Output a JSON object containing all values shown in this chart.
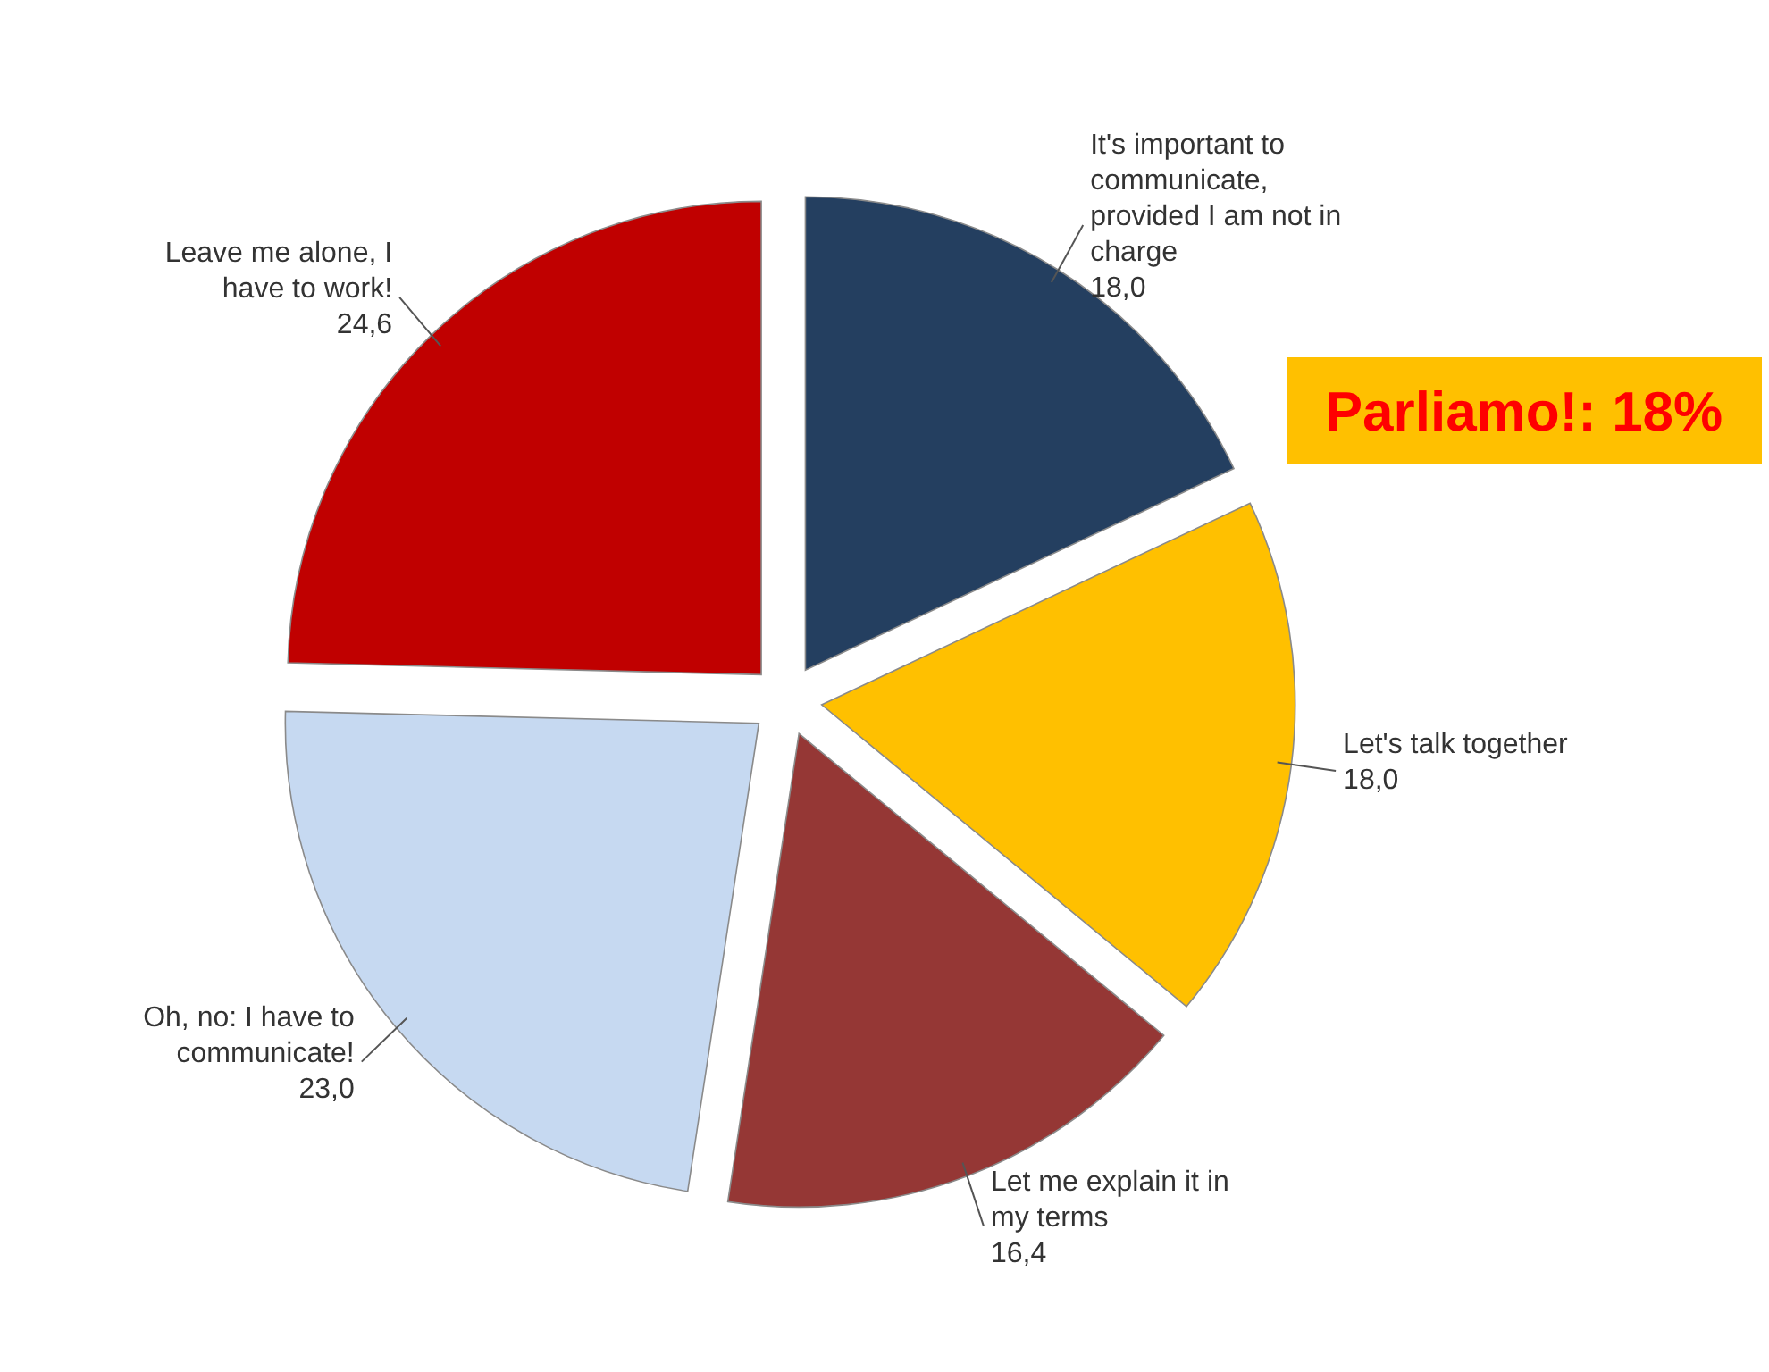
{
  "chart_data": {
    "type": "pie",
    "categories": [
      "It's important to communicate, provided I am not in charge",
      "Let's talk together",
      "Let me explain it in my terms",
      "Oh, no: I have to communicate!",
      "Leave me alone, I have to work!"
    ],
    "values": [
      18.0,
      18.0,
      16.4,
      23.0,
      24.6
    ],
    "value_labels": [
      "18,0",
      "18,0",
      "16,4",
      "23,0",
      "24,6"
    ],
    "colors": [
      "#243f60",
      "#ffc000",
      "#953735",
      "#c6d9f1",
      "#c00000"
    ],
    "annotations": [
      "Parliamo!: 18%"
    ]
  }
}
